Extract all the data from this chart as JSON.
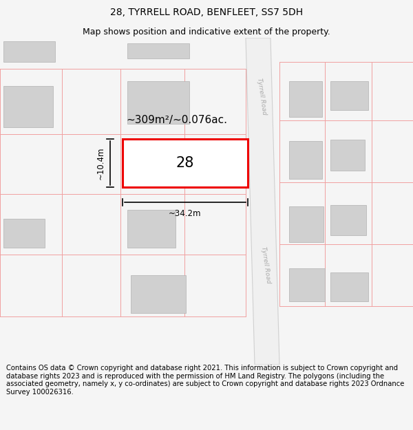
{
  "title": "28, TYRRELL ROAD, BENFLEET, SS7 5DH",
  "subtitle": "Map shows position and indicative extent of the property.",
  "footer": "Contains OS data © Crown copyright and database right 2021. This information is subject to Crown copyright and database rights 2023 and is reproduced with the permission of HM Land Registry. The polygons (including the associated geometry, namely x, y co-ordinates) are subject to Crown copyright and database rights 2023 Ordnance Survey 100026316.",
  "bg_color": "#f5f5f5",
  "map_bg": "#ffffff",
  "plot_color": "#ee0000",
  "plot_fill": "#ffffff",
  "building_color": "#d0d0d0",
  "building_edge": "#b0b0b0",
  "road_fill": "#f0f0f0",
  "road_edge": "#d0d0d0",
  "pink_line": "#f0a0a0",
  "area_text": "~309m²/~0.076ac.",
  "width_text": "~34.2m",
  "height_text": "~10.4m",
  "number_text": "28",
  "road_label_top": "Tyrrell Road",
  "road_label_bottom": "Tyrrell Road",
  "title_fontsize": 10,
  "subtitle_fontsize": 9,
  "footer_fontsize": 7.2,
  "map_border_color": "#cccccc"
}
